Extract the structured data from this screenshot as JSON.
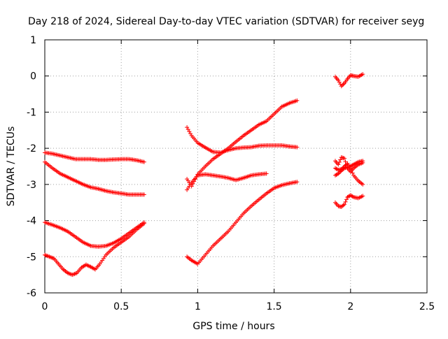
{
  "chart_data": {
    "type": "scatter",
    "title": "Day 218 of 2024, Sidereal Day-to-day VTEC variation (SDTVAR) for receiver seyg",
    "xlabel": "GPS time / hours",
    "ylabel": "SDTVAR / TECUs",
    "xlim": [
      0,
      2.5
    ],
    "ylim": [
      -6,
      1
    ],
    "xticks": [
      0,
      0.5,
      1,
      1.5,
      2,
      2.5
    ],
    "xtick_labels": [
      "0",
      "0.5",
      "1",
      "1.5",
      "2",
      "2.5"
    ],
    "yticks": [
      1,
      0,
      -1,
      -2,
      -3,
      -4,
      -5,
      -6
    ],
    "ytick_labels": [
      "1",
      "0",
      "-1",
      "-2",
      "-3",
      "-4",
      "-5",
      "-6"
    ],
    "grid": true,
    "marker": "+",
    "color": "#ff0000",
    "series": [
      {
        "x": [
          0.0,
          0.05,
          0.1,
          0.15,
          0.2,
          0.25,
          0.3,
          0.35,
          0.4,
          0.45,
          0.5,
          0.55,
          0.6,
          0.65
        ],
        "y": [
          -2.12,
          -2.15,
          -2.2,
          -2.25,
          -2.3,
          -2.3,
          -2.3,
          -2.32,
          -2.32,
          -2.31,
          -2.3,
          -2.3,
          -2.33,
          -2.38
        ]
      },
      {
        "x": [
          0.0,
          0.05,
          0.1,
          0.15,
          0.2,
          0.25,
          0.3,
          0.35,
          0.4,
          0.45,
          0.5,
          0.55,
          0.6,
          0.65
        ],
        "y": [
          -2.38,
          -2.55,
          -2.7,
          -2.8,
          -2.9,
          -3.0,
          -3.08,
          -3.12,
          -3.18,
          -3.22,
          -3.25,
          -3.28,
          -3.28,
          -3.28
        ]
      },
      {
        "x": [
          0.0,
          0.05,
          0.1,
          0.15,
          0.2,
          0.25,
          0.3,
          0.35,
          0.4,
          0.45,
          0.5,
          0.55,
          0.6,
          0.65
        ],
        "y": [
          -4.05,
          -4.12,
          -4.2,
          -4.3,
          -4.45,
          -4.6,
          -4.7,
          -4.72,
          -4.7,
          -4.62,
          -4.5,
          -4.35,
          -4.2,
          -4.05
        ]
      },
      {
        "x": [
          0.0,
          0.03,
          0.06,
          0.09,
          0.12,
          0.15,
          0.18,
          0.21,
          0.24,
          0.27,
          0.3,
          0.33,
          0.36,
          0.4,
          0.45,
          0.5,
          0.55,
          0.6,
          0.65
        ],
        "y": [
          -4.95,
          -5.0,
          -5.05,
          -5.2,
          -5.35,
          -5.45,
          -5.5,
          -5.45,
          -5.3,
          -5.22,
          -5.28,
          -5.35,
          -5.2,
          -4.95,
          -4.75,
          -4.6,
          -4.45,
          -4.25,
          -4.08
        ]
      },
      {
        "x": [
          0.93,
          0.96,
          1.0,
          1.05,
          1.1,
          1.15,
          1.2,
          1.25,
          1.3,
          1.35,
          1.4,
          1.45,
          1.5,
          1.55,
          1.6,
          1.65
        ],
        "y": [
          -1.42,
          -1.65,
          -1.85,
          -1.98,
          -2.1,
          -2.12,
          -2.05,
          -2.0,
          -1.98,
          -1.97,
          -1.93,
          -1.92,
          -1.92,
          -1.92,
          -1.95,
          -1.97
        ]
      },
      {
        "x": [
          0.93,
          0.96,
          1.0,
          1.05,
          1.1,
          1.15,
          1.2,
          1.25,
          1.3,
          1.35,
          1.4,
          1.45,
          1.5,
          1.55,
          1.6,
          1.65
        ],
        "y": [
          -2.85,
          -3.05,
          -2.72,
          -2.5,
          -2.3,
          -2.15,
          -2.0,
          -1.82,
          -1.65,
          -1.5,
          -1.35,
          -1.25,
          -1.05,
          -0.85,
          -0.75,
          -0.68
        ]
      },
      {
        "x": [
          0.93,
          0.96,
          1.0,
          1.05,
          1.1,
          1.15,
          1.2,
          1.25,
          1.3,
          1.35,
          1.4,
          1.45
        ],
        "y": [
          -3.15,
          -2.95,
          -2.75,
          -2.72,
          -2.75,
          -2.78,
          -2.82,
          -2.88,
          -2.82,
          -2.75,
          -2.72,
          -2.7
        ]
      },
      {
        "x": [
          0.93,
          0.96,
          1.0,
          1.05,
          1.1,
          1.15,
          1.2,
          1.25,
          1.3,
          1.35,
          1.4,
          1.45,
          1.5,
          1.55,
          1.6,
          1.65
        ],
        "y": [
          -5.0,
          -5.1,
          -5.2,
          -4.95,
          -4.7,
          -4.5,
          -4.3,
          -4.05,
          -3.8,
          -3.6,
          -3.42,
          -3.25,
          -3.1,
          -3.02,
          -2.97,
          -2.93
        ]
      },
      {
        "x": [
          1.9,
          1.92,
          1.94,
          1.96,
          1.98,
          2.0,
          2.02,
          2.05,
          2.08
        ],
        "y": [
          -0.02,
          -0.12,
          -0.28,
          -0.2,
          -0.08,
          0.02,
          0.0,
          -0.02,
          0.05
        ]
      },
      {
        "x": [
          1.9,
          1.92,
          1.94,
          1.96,
          1.98,
          2.0,
          2.02,
          2.05,
          2.08
        ],
        "y": [
          -2.35,
          -2.45,
          -2.25,
          -2.28,
          -2.55,
          -2.65,
          -2.55,
          -2.45,
          -2.4
        ]
      },
      {
        "x": [
          1.9,
          1.92,
          1.94,
          1.96,
          1.98,
          2.0,
          2.02,
          2.05,
          2.08
        ],
        "y": [
          -2.75,
          -2.7,
          -2.62,
          -2.55,
          -2.52,
          -2.5,
          -2.45,
          -2.38,
          -2.35
        ]
      },
      {
        "x": [
          1.9,
          1.92,
          1.94,
          1.96,
          1.98,
          2.0,
          2.02,
          2.05,
          2.08
        ],
        "y": [
          -2.55,
          -2.6,
          -2.58,
          -2.5,
          -2.42,
          -2.55,
          -2.75,
          -2.9,
          -3.0
        ]
      },
      {
        "x": [
          1.9,
          1.92,
          1.94,
          1.96,
          1.98,
          2.0,
          2.02,
          2.05,
          2.08
        ],
        "y": [
          -3.5,
          -3.6,
          -3.62,
          -3.55,
          -3.35,
          -3.3,
          -3.35,
          -3.38,
          -3.32
        ]
      }
    ]
  }
}
